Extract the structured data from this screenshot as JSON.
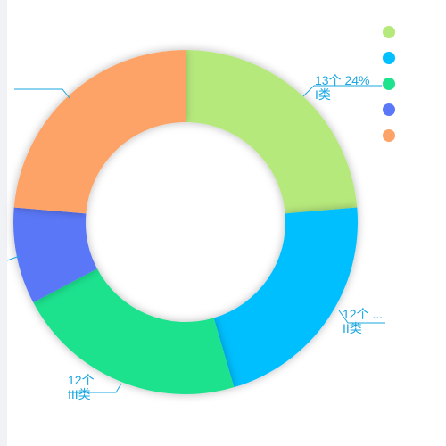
{
  "chart_data": {
    "type": "pie",
    "donut": true,
    "categories": [
      "I类",
      "II类",
      "III类",
      "",
      ""
    ],
    "values": [
      13,
      12,
      12,
      5,
      13
    ],
    "colors": [
      "#b6e97c",
      "#00bfff",
      "#1de28e",
      "#5a77f7",
      "#fda367"
    ],
    "start_angle_deg": 90,
    "clockwise": true,
    "legend": "top-right",
    "labels": [
      {
        "line1": "13个 24%",
        "line2": "I类"
      },
      {
        "line1": "12个 ...",
        "line2": "II类"
      },
      {
        "line1": "12个",
        "line2": "III类"
      }
    ],
    "title": "",
    "subtitle": ""
  }
}
